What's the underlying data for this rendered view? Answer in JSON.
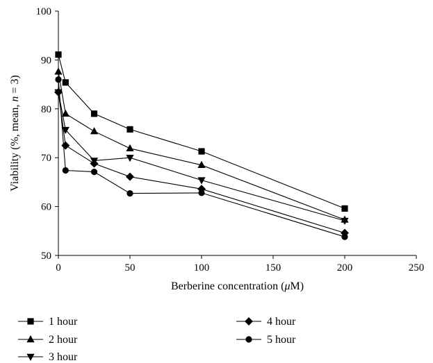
{
  "chart_data": {
    "type": "line",
    "xlabel_parts": [
      "Berberine concentration (",
      "μ",
      "M)"
    ],
    "ylabel_parts": [
      "Viability (%, mean, ",
      "n",
      " = 3)"
    ],
    "xlim": [
      0,
      250
    ],
    "ylim": [
      50,
      100
    ],
    "xticks": [
      0,
      50,
      100,
      150,
      200,
      250
    ],
    "yticks": [
      50,
      60,
      70,
      80,
      90,
      100
    ],
    "grid": false,
    "legend_position": "bottom",
    "x": [
      0,
      5,
      25,
      50,
      100,
      200
    ],
    "series": [
      {
        "name": "1 hour",
        "marker": "square",
        "values": [
          91.1,
          85.4,
          79.0,
          75.8,
          71.3,
          59.6
        ]
      },
      {
        "name": "2 hour",
        "marker": "triangle-up",
        "values": [
          87.6,
          79.0,
          75.4,
          71.9,
          68.5,
          57.3
        ]
      },
      {
        "name": "3 hour",
        "marker": "triangle-down",
        "values": [
          83.4,
          75.7,
          69.4,
          70.0,
          65.4,
          57.1
        ]
      },
      {
        "name": "4 hour",
        "marker": "diamond",
        "values": [
          83.4,
          72.5,
          68.8,
          66.1,
          63.6,
          54.6
        ]
      },
      {
        "name": "5 hour",
        "marker": "circle",
        "values": [
          86.0,
          67.4,
          67.1,
          62.7,
          62.8,
          53.8
        ]
      }
    ]
  }
}
